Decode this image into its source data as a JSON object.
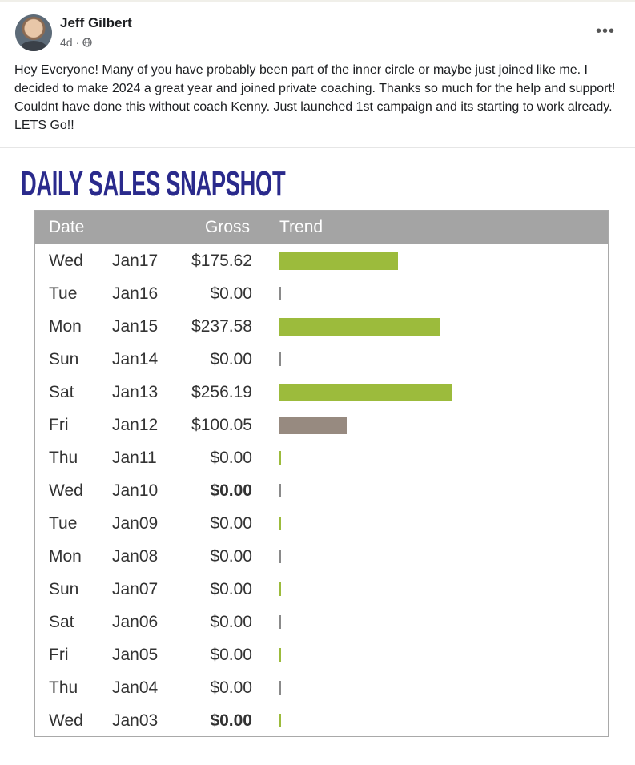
{
  "post": {
    "author": "Jeff Gilbert",
    "time": "4d",
    "audience_icon": "globe-icon",
    "more_icon": "more-options-icon",
    "text": "Hey Everyone!  Many of you have probably been part of the inner circle or maybe just joined like me.  I decided to make 2024 a great year and joined private coaching.  Thanks so much for the help and support!  Couldnt have done this without coach Kenny.  Just launched 1st campaign and its starting to work already.  LETS Go!!"
  },
  "image": {
    "title": "DAILY SALES SNAPSHOT",
    "headers": {
      "date": "Date",
      "gross": "Gross",
      "trend": "Trend"
    },
    "colors": {
      "header_bg": "#a4a4a4",
      "bar_green": "#9cbb3c",
      "bar_gray": "#978a80",
      "tick_gray": "#8a8a8a",
      "title": "#2a2a8c"
    },
    "rows": [
      {
        "day": "Wed",
        "date": "Jan17",
        "gross": "$175.62",
        "bold": false,
        "trend_value": 175.62,
        "trend_color": "green"
      },
      {
        "day": "Tue",
        "date": "Jan16",
        "gross": "$0.00",
        "bold": false,
        "trend_value": 0,
        "trend_color": "gray"
      },
      {
        "day": "Mon",
        "date": "Jan15",
        "gross": "$237.58",
        "bold": false,
        "trend_value": 237.58,
        "trend_color": "green"
      },
      {
        "day": "Sun",
        "date": "Jan14",
        "gross": "$0.00",
        "bold": false,
        "trend_value": 0,
        "trend_color": "gray"
      },
      {
        "day": "Sat",
        "date": "Jan13",
        "gross": "$256.19",
        "bold": false,
        "trend_value": 256.19,
        "trend_color": "green"
      },
      {
        "day": "Fri",
        "date": "Jan12",
        "gross": "$100.05",
        "bold": false,
        "trend_value": 100.05,
        "trend_color": "brown"
      },
      {
        "day": "Thu",
        "date": "Jan11",
        "gross": "$0.00",
        "bold": false,
        "trend_value": 0,
        "trend_color": "green"
      },
      {
        "day": "Wed",
        "date": "Jan10",
        "gross": "$0.00",
        "bold": true,
        "trend_value": 0,
        "trend_color": "gray"
      },
      {
        "day": "Tue",
        "date": "Jan09",
        "gross": "$0.00",
        "bold": false,
        "trend_value": 0,
        "trend_color": "green"
      },
      {
        "day": "Mon",
        "date": "Jan08",
        "gross": "$0.00",
        "bold": false,
        "trend_value": 0,
        "trend_color": "gray"
      },
      {
        "day": "Sun",
        "date": "Jan07",
        "gross": "$0.00",
        "bold": false,
        "trend_value": 0,
        "trend_color": "green"
      },
      {
        "day": "Sat",
        "date": "Jan06",
        "gross": "$0.00",
        "bold": false,
        "trend_value": 0,
        "trend_color": "gray"
      },
      {
        "day": "Fri",
        "date": "Jan05",
        "gross": "$0.00",
        "bold": false,
        "trend_value": 0,
        "trend_color": "green"
      },
      {
        "day": "Thu",
        "date": "Jan04",
        "gross": "$0.00",
        "bold": false,
        "trend_value": 0,
        "trend_color": "gray"
      },
      {
        "day": "Wed",
        "date": "Jan03",
        "gross": "$0.00",
        "bold": true,
        "trend_value": 0,
        "trend_color": "green"
      }
    ]
  }
}
